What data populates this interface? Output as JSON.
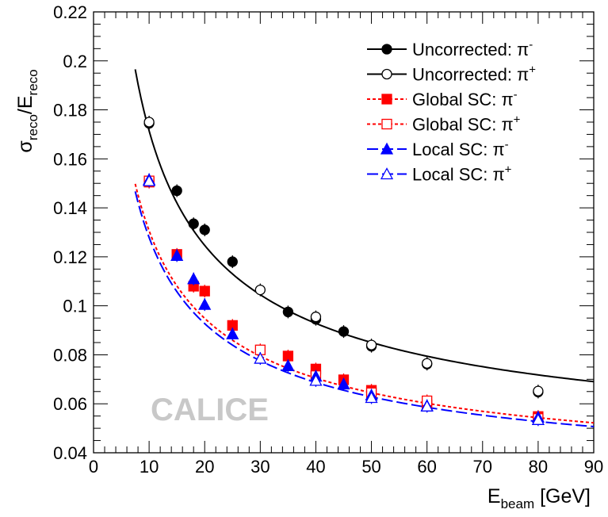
{
  "chart_data": {
    "type": "scatter",
    "xlabel": "E",
    "xlabel_sub": "beam",
    "xlabel_unit": " [GeV]",
    "ylabel_parts": [
      "σ",
      "reco",
      "/E",
      "reco"
    ],
    "xlim": [
      0,
      90
    ],
    "ylim": [
      0.04,
      0.22
    ],
    "x_ticks": [
      "0",
      "10",
      "20",
      "30",
      "40",
      "50",
      "60",
      "70",
      "80",
      "90"
    ],
    "y_ticks": [
      "0.04",
      "0.06",
      "0.08",
      "0.1",
      "0.12",
      "0.14",
      "0.16",
      "0.18",
      "0.2",
      "0.22"
    ],
    "watermark": "CALICE",
    "legend_position": "top-right",
    "series": [
      {
        "name": "Uncorrected: π",
        "sup": "-",
        "color": "#000000",
        "marker": "circle",
        "filled": true,
        "line": "solid",
        "x": [
          10,
          15,
          18,
          20,
          25,
          35,
          40,
          45,
          50,
          60,
          80
        ],
        "y": [
          0.1745,
          0.147,
          0.1335,
          0.131,
          0.118,
          0.0975,
          0.0945,
          0.0895,
          0.0835,
          0.0762,
          0.0648
        ]
      },
      {
        "name": "Uncorrected: π",
        "sup": "+",
        "color": "#000000",
        "marker": "circle",
        "filled": false,
        "line": "solid",
        "x": [
          10,
          30,
          40,
          50,
          60,
          80
        ],
        "y": [
          0.175,
          0.1065,
          0.0955,
          0.084,
          0.0765,
          0.0652
        ]
      },
      {
        "name": "Global SC: π",
        "sup": "-",
        "color": "#ff0000",
        "marker": "square",
        "filled": true,
        "line": "dotted",
        "x": [
          10,
          15,
          18,
          20,
          25,
          35,
          40,
          45,
          50,
          60,
          80
        ],
        "y": [
          0.1505,
          0.121,
          0.108,
          0.106,
          0.092,
          0.0795,
          0.0742,
          0.0698,
          0.0655,
          0.0595,
          0.0548
        ]
      },
      {
        "name": "Global SC: π",
        "sup": "+",
        "color": "#ff0000",
        "marker": "square",
        "filled": false,
        "line": "dotted",
        "x": [
          10,
          30,
          40,
          50,
          60,
          80
        ],
        "y": [
          0.151,
          0.082,
          0.0715,
          0.0645,
          0.0612,
          0.054
        ]
      },
      {
        "name": "Local SC: π",
        "sup": "-",
        "color": "#0000ff",
        "marker": "triangle",
        "filled": true,
        "line": "dashed",
        "x": [
          10,
          15,
          18,
          20,
          25,
          35,
          40,
          45,
          50,
          60,
          80
        ],
        "y": [
          0.1515,
          0.1205,
          0.111,
          0.1005,
          0.0885,
          0.0755,
          0.0712,
          0.068,
          0.0635,
          0.0592,
          0.0545
        ]
      },
      {
        "name": "Local SC: π",
        "sup": "+",
        "color": "#0000ff",
        "marker": "triangle",
        "filled": false,
        "line": "dashed",
        "x": [
          10,
          30,
          40,
          50,
          60,
          80
        ],
        "y": [
          0.151,
          0.0785,
          0.0695,
          0.0625,
          0.059,
          0.0535
        ]
      }
    ],
    "fits": [
      {
        "color": "#000000",
        "line": "solid",
        "x_range": [
          7.5,
          90
        ],
        "a": 0.5264,
        "b": 0.0411,
        "c": 0.0
      },
      {
        "color": "#ff0000",
        "line": "dotted",
        "x_range": [
          7.5,
          90
        ],
        "a": 0.4016,
        "b": 0.0306,
        "c": 0.0
      },
      {
        "color": "#0000ff",
        "line": "dashed",
        "x_range": [
          7.5,
          90
        ],
        "a": 0.3938,
        "b": 0.0291,
        "c": 0.0
      }
    ]
  }
}
